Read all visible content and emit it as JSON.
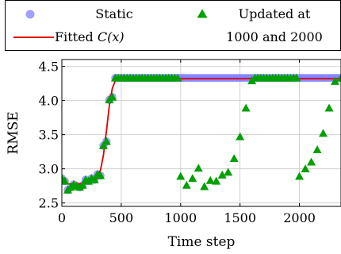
{
  "chart_data": {
    "type": "scatter",
    "xlabel": "Time step",
    "ylabel": "RMSE",
    "xlim": [
      0,
      2350
    ],
    "ylim": [
      2.45,
      4.6
    ],
    "grid": true,
    "x_ticks": [
      0,
      500,
      1000,
      1500,
      2000
    ],
    "x_tick_labels": [
      "0",
      "500",
      "1000",
      "1500",
      "2000"
    ],
    "y_ticks": [
      2.5,
      3.0,
      3.5,
      4.0,
      4.5
    ],
    "y_tick_labels": [
      "2.5",
      "3.0",
      "3.5",
      "4.0",
      "4.5"
    ],
    "legend": {
      "placement": "top, above plot",
      "entries": [
        {
          "label": "Static",
          "marker": "circle",
          "color": "#8080ff"
        },
        {
          "label": "Updated at",
          "label_line2": "1000 and 2000",
          "marker": "triangle",
          "color": "#00a000"
        },
        {
          "label_prefix": "Fitted ",
          "label_math": "C(x)",
          "marker": "line",
          "color": "#e00000"
        }
      ]
    },
    "series": [
      {
        "name": "Static",
        "color": "#8080ff",
        "marker": "circle",
        "x": [
          0,
          25,
          50,
          75,
          100,
          125,
          150,
          175,
          200,
          225,
          250,
          275,
          300,
          325,
          350,
          375,
          400,
          425,
          450,
          475,
          500,
          525,
          550,
          575,
          600,
          625,
          650,
          675,
          700,
          725,
          750,
          775,
          800,
          825,
          850,
          875,
          900,
          925,
          950,
          975,
          1000,
          1025,
          1050,
          1075,
          1100,
          1125,
          1150,
          1175,
          1200,
          1225,
          1250,
          1275,
          1300,
          1325,
          1350,
          1375,
          1400,
          1425,
          1450,
          1475,
          1500,
          1525,
          1550,
          1575,
          1600,
          1625,
          1650,
          1675,
          1700,
          1725,
          1750,
          1775,
          1800,
          1825,
          1850,
          1875,
          1900,
          1925,
          1950,
          1975,
          2000,
          2025,
          2050,
          2075,
          2100,
          2125,
          2150,
          2175,
          2200,
          2225,
          2250,
          2275,
          2300,
          2325,
          2350
        ],
        "y": [
          2.86,
          2.82,
          2.69,
          2.73,
          2.77,
          2.75,
          2.73,
          2.76,
          2.84,
          2.82,
          2.86,
          2.84,
          2.92,
          2.9,
          3.34,
          3.4,
          4.01,
          4.05,
          4.33,
          4.33,
          4.33,
          4.33,
          4.33,
          4.33,
          4.33,
          4.33,
          4.33,
          4.33,
          4.33,
          4.33,
          4.33,
          4.33,
          4.33,
          4.33,
          4.33,
          4.33,
          4.33,
          4.33,
          4.33,
          4.33,
          4.33,
          4.33,
          4.33,
          4.33,
          4.33,
          4.33,
          4.33,
          4.33,
          4.33,
          4.33,
          4.33,
          4.33,
          4.33,
          4.33,
          4.33,
          4.33,
          4.33,
          4.33,
          4.33,
          4.33,
          4.33,
          4.33,
          4.33,
          4.33,
          4.33,
          4.33,
          4.33,
          4.33,
          4.33,
          4.33,
          4.33,
          4.33,
          4.33,
          4.33,
          4.33,
          4.33,
          4.33,
          4.33,
          4.33,
          4.33,
          4.33,
          4.33,
          4.33,
          4.33,
          4.33,
          4.33,
          4.33,
          4.33,
          4.33,
          4.33,
          4.33,
          4.33,
          4.33,
          4.33,
          4.33
        ]
      },
      {
        "name": "Updated at 1000 and 2000",
        "color": "#00a000",
        "marker": "triangle",
        "x": [
          0,
          25,
          50,
          75,
          100,
          125,
          150,
          175,
          200,
          225,
          250,
          275,
          300,
          325,
          350,
          375,
          400,
          425,
          450,
          475,
          500,
          525,
          550,
          575,
          600,
          625,
          650,
          675,
          700,
          725,
          750,
          775,
          800,
          825,
          850,
          875,
          900,
          925,
          950,
          975,
          1000,
          1050,
          1100,
          1150,
          1200,
          1250,
          1300,
          1350,
          1400,
          1450,
          1500,
          1550,
          1600,
          1625,
          1650,
          1675,
          1700,
          1725,
          1750,
          1775,
          1800,
          1825,
          1850,
          1875,
          1900,
          1925,
          1950,
          1975,
          2000,
          2050,
          2100,
          2150,
          2200,
          2250,
          2300,
          2350
        ],
        "y": [
          2.86,
          2.82,
          2.69,
          2.73,
          2.77,
          2.75,
          2.73,
          2.76,
          2.84,
          2.82,
          2.86,
          2.84,
          2.92,
          2.9,
          3.34,
          3.4,
          4.01,
          4.05,
          4.33,
          4.33,
          4.33,
          4.33,
          4.33,
          4.33,
          4.33,
          4.33,
          4.33,
          4.33,
          4.33,
          4.33,
          4.33,
          4.33,
          4.33,
          4.33,
          4.33,
          4.33,
          4.33,
          4.33,
          4.33,
          4.33,
          2.89,
          2.76,
          2.86,
          3.01,
          2.74,
          2.83,
          2.82,
          2.91,
          2.95,
          3.15,
          3.47,
          3.89,
          4.29,
          4.33,
          4.33,
          4.33,
          4.33,
          4.33,
          4.33,
          4.33,
          4.33,
          4.33,
          4.33,
          4.33,
          4.33,
          4.33,
          4.33,
          4.33,
          2.89,
          3.0,
          3.1,
          3.28,
          3.52,
          3.89,
          4.28,
          4.33
        ]
      },
      {
        "name": "Fitted C(x)",
        "color": "#e00000",
        "marker": "line",
        "x": [
          0,
          50,
          100,
          150,
          200,
          250,
          275,
          300,
          325,
          350,
          375,
          400,
          425,
          450,
          500,
          600,
          800,
          1000,
          1200,
          1400,
          1600,
          1800,
          2000,
          2200,
          2350
        ],
        "y": [
          2.78,
          2.78,
          2.78,
          2.78,
          2.79,
          2.8,
          2.82,
          2.87,
          2.98,
          3.2,
          3.55,
          3.93,
          4.18,
          4.29,
          4.32,
          4.32,
          4.32,
          4.32,
          4.32,
          4.32,
          4.32,
          4.32,
          4.32,
          4.32,
          4.32
        ]
      }
    ]
  }
}
